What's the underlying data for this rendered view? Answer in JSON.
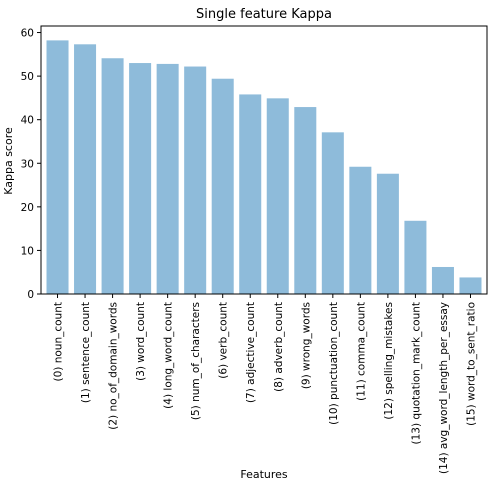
{
  "chart_data": {
    "type": "bar",
    "title": "Single feature Kappa",
    "xlabel": "Features",
    "ylabel": "Kappa score",
    "ylim": [
      0,
      61.5
    ],
    "yticks": [
      0,
      10,
      20,
      30,
      40,
      50,
      60
    ],
    "grid": false,
    "bar_color": "#8ebbda",
    "categories": [
      "(0) noun_count",
      "(1) sentence_count",
      "(2) no_of_domain_words",
      "(3) word_count",
      "(4) long_word_count",
      "(5) num_of_characters",
      "(6) verb_count",
      "(7) adjective_count",
      "(8) adverb_count",
      "(9) wrong_words",
      "(10) punctuation_count",
      "(11) comma_count",
      "(12) spelling_mistakes",
      "(13) quotation_mark_count",
      "(14) avg_word_length_per_essay",
      "(15) word_to_sent_ratio"
    ],
    "values": [
      58.2,
      57.3,
      54.1,
      53.0,
      52.8,
      52.2,
      49.4,
      45.8,
      44.9,
      42.9,
      37.1,
      29.2,
      27.6,
      16.8,
      6.2,
      3.8
    ]
  }
}
